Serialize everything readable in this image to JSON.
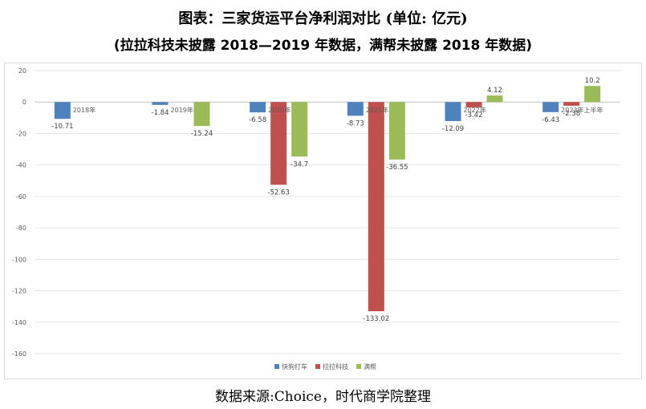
{
  "title_line1": "图表：三家货运平台净利润对比 (单位: 亿元)",
  "title_line2": "(拉拉科技未披露 2018—2019 年数据，满帮未披露 2018 年数据)",
  "source": "数据来源:Choice，时代商学院整理",
  "colors": {
    "快狗打车": "#4f81bd",
    "拉拉科技": "#c0504d",
    "满帮": "#9bbb59"
  },
  "chart_data": {
    "type": "bar",
    "categories": [
      "2018年",
      "2019年",
      "2020年",
      "2021年",
      "2022年",
      "2023年上半年"
    ],
    "series": [
      {
        "name": "快狗打车",
        "values": [
          -10.71,
          -1.84,
          -6.58,
          -8.73,
          -12.09,
          -6.43
        ]
      },
      {
        "name": "拉拉科技",
        "values": [
          null,
          null,
          -52.63,
          -133.02,
          -3.42,
          -2.38
        ]
      },
      {
        "name": "满帮",
        "values": [
          null,
          -15.24,
          -34.7,
          -36.55,
          4.12,
          10.2
        ]
      }
    ],
    "ylim": [
      -160,
      20
    ],
    "yticks": [
      20,
      0,
      -20,
      -40,
      -60,
      -80,
      -100,
      -120,
      -140,
      -160
    ],
    "grid": true,
    "legend": "bottom"
  }
}
